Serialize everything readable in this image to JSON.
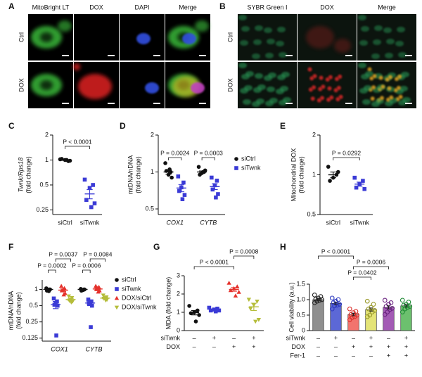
{
  "image_panels": [
    {
      "letter": "A",
      "columns": [
        "MitoBright LT",
        "DOX",
        "DAPI",
        "Merge"
      ],
      "rows": [
        "Ctrl",
        "DOX"
      ]
    },
    {
      "letter": "B",
      "columns": [
        "SYBR Green I",
        "DOX",
        "Merge"
      ],
      "rows": [
        "Ctrl",
        "DOX"
      ]
    }
  ],
  "chart_data": [
    {
      "type": "dot",
      "letter": "C",
      "ylabel": [
        "Twnk/Rps18",
        "(fold change)"
      ],
      "log": true,
      "ylim": [
        0.22,
        2
      ],
      "yticks": [
        0.25,
        0.5,
        1,
        2
      ],
      "categories": [
        "siCtrl",
        "siTwnk"
      ],
      "groups": [
        {
          "color": "#111111",
          "marker": "circle",
          "points": [
            1.02,
            0.97,
            1.0,
            1.03,
            0.98,
            1.0
          ],
          "mean": 1.0,
          "sem": 0.01
        },
        {
          "color": "#3b3bd6",
          "marker": "square",
          "points": [
            0.58,
            0.5,
            0.46,
            0.33,
            0.3,
            0.27
          ],
          "mean": 0.39,
          "sem": 0.05
        }
      ],
      "annotations": [
        "P < 0.0001"
      ]
    },
    {
      "type": "dot",
      "letter": "D",
      "ylabel": [
        "mtDNA/nDNA",
        "(fold change)"
      ],
      "log": true,
      "ylim": [
        0.45,
        2
      ],
      "yticks": [
        0.5,
        1,
        2
      ],
      "categories": [
        "COX1",
        "CYTB"
      ],
      "series": [
        {
          "name": "siCtrl",
          "color": "#111111",
          "marker": "circle",
          "points": [
            [
              1.18,
              1.0,
              0.95,
              1.02,
              0.9,
              1.05
            ],
            [
              1.1,
              1.0,
              0.98,
              0.95,
              1.03,
              1.0
            ]
          ],
          "means": [
            1.0,
            1.0
          ],
          "sems": [
            0.04,
            0.02
          ]
        },
        {
          "name": "siTwnk",
          "color": "#3b3bd6",
          "marker": "square",
          "points": [
            [
              0.92,
              0.82,
              0.75,
              0.7,
              0.65,
              0.6
            ],
            [
              0.9,
              0.85,
              0.78,
              0.72,
              0.66,
              0.62
            ]
          ],
          "means": [
            0.74,
            0.76
          ],
          "sems": [
            0.05,
            0.04
          ]
        }
      ],
      "annotations": [
        "P = 0.0024",
        "P = 0.0003"
      ]
    },
    {
      "type": "dot",
      "letter": "E",
      "ylabel": [
        "Mitochondrial DOX",
        "(fold change)"
      ],
      "log": true,
      "ylim": [
        0.5,
        2
      ],
      "yticks": [
        0.5,
        1,
        2
      ],
      "categories": [
        "siCtrl",
        "siTwnk"
      ],
      "groups": [
        {
          "color": "#111111",
          "marker": "circle",
          "points": [
            1.15,
            1.0,
            0.95,
            0.9,
            1.05
          ],
          "mean": 1.0,
          "sem": 0.05
        },
        {
          "color": "#3b3bd6",
          "marker": "square",
          "points": [
            0.95,
            0.9,
            0.85,
            0.8,
            0.78
          ],
          "mean": 0.85,
          "sem": 0.03
        }
      ],
      "annotations": [
        "P = 0.0292"
      ]
    },
    {
      "type": "dot",
      "letter": "F",
      "ylabel": [
        "mtDNA/nDNA",
        "(fold change)"
      ],
      "log": true,
      "ylim": [
        0.11,
        1.5
      ],
      "yticks": [
        0.125,
        0.25,
        0.5,
        1
      ],
      "categories": [
        "COX1",
        "CYTB"
      ],
      "series": [
        {
          "name": "siCtrl",
          "color": "#111111",
          "marker": "circle",
          "points": [
            [
              1.05,
              1.0,
              0.98,
              0.95,
              1.0,
              0.93
            ],
            [
              1.02,
              1.0,
              0.97,
              0.95,
              1.0,
              0.98
            ]
          ],
          "means": [
            1.0,
            1.0
          ],
          "sems": [
            0.02,
            0.01
          ]
        },
        {
          "name": "siTwnk",
          "color": "#3b3bd6",
          "marker": "square",
          "points": [
            [
              0.68,
              0.6,
              0.55,
              0.52,
              0.5,
              0.14
            ],
            [
              0.65,
              0.6,
              0.58,
              0.55,
              0.5,
              0.2
            ]
          ],
          "means": [
            0.52,
            0.56
          ],
          "sems": [
            0.08,
            0.06
          ]
        },
        {
          "name": "DOX/siCtrl",
          "color": "#e5322c",
          "marker": "triangle",
          "points": [
            [
              1.15,
              1.05,
              1.0,
              0.95,
              0.85,
              0.8
            ],
            [
              1.15,
              1.1,
              1.05,
              1.0,
              0.95,
              0.9
            ]
          ],
          "means": [
            0.97,
            1.02
          ],
          "sems": [
            0.05,
            0.04
          ]
        },
        {
          "name": "DOX/siTwnk",
          "color": "#b5bd3a",
          "marker": "triangle-down",
          "points": [
            [
              0.75,
              0.7,
              0.65,
              0.62,
              0.6,
              0.58
            ],
            [
              0.78,
              0.72,
              0.7,
              0.68,
              0.65,
              0.63
            ]
          ],
          "means": [
            0.65,
            0.69
          ],
          "sems": [
            0.03,
            0.02
          ]
        }
      ],
      "annotations": [
        "P = 0.0037",
        "P = 0.0084",
        "P = 0.0002",
        "P = 0.0006"
      ]
    },
    {
      "type": "dot",
      "letter": "G",
      "ylabel": [
        "MDA (fold change)"
      ],
      "log": false,
      "ylim": [
        0,
        3
      ],
      "yticks": [
        0,
        1,
        2,
        3
      ],
      "groups": [
        {
          "color": "#111111",
          "marker": "circle",
          "points": [
            1.35,
            1.1,
            1.0,
            0.95,
            0.85,
            0.5
          ],
          "mean": 0.98,
          "sem": 0.12
        },
        {
          "color": "#3b3bd6",
          "marker": "square",
          "points": [
            1.25,
            1.2,
            1.15,
            1.1,
            1.1,
            1.05
          ],
          "mean": 1.14,
          "sem": 0.03
        },
        {
          "color": "#e5322c",
          "marker": "triangle",
          "points": [
            2.6,
            2.4,
            2.3,
            2.2,
            2.1,
            1.9
          ],
          "mean": 2.25,
          "sem": 0.1
        },
        {
          "color": "#b5bd3a",
          "marker": "triangle-down",
          "points": [
            1.7,
            1.6,
            1.4,
            1.2,
            0.6,
            0.5
          ],
          "mean": 1.3,
          "sem": 0.2
        }
      ],
      "factors": [
        {
          "label": "siTwnk",
          "values": [
            "–",
            "+",
            "–",
            "+"
          ]
        },
        {
          "label": "DOX",
          "values": [
            "–",
            "–",
            "+",
            "+"
          ]
        }
      ],
      "annotations": [
        "P = 0.0008",
        "P < 0.0001"
      ]
    },
    {
      "type": "bar",
      "letter": "H",
      "ylabel": [
        "Cell viability (a.u.)"
      ],
      "log": false,
      "ylim": [
        0,
        1.5
      ],
      "yticks": [
        0,
        0.5,
        {
          "value": 1,
          "label": "1.0"
        },
        1.5
      ],
      "groups": [
        {
          "color": "#222222",
          "fill": "#8f8f8f",
          "marker": "open-circle",
          "points": [
            1.15,
            1.1,
            1.05,
            1.02,
            1.0,
            0.98,
            0.95,
            0.9
          ],
          "mean": 1.0,
          "sem": 0.03
        },
        {
          "color": "#2f3bc0",
          "fill": "#5c68d6",
          "marker": "open-circle",
          "points": [
            1.05,
            1.0,
            0.95,
            0.9,
            0.85,
            0.82,
            0.8,
            0.7
          ],
          "mean": 0.88,
          "sem": 0.04
        },
        {
          "color": "#d9302a",
          "fill": "#f2746e",
          "marker": "open-circle",
          "points": [
            0.7,
            0.62,
            0.58,
            0.52,
            0.5,
            0.45,
            0.42,
            0.35
          ],
          "mean": 0.52,
          "sem": 0.04
        },
        {
          "color": "#9a9a2a",
          "fill": "#e4e477",
          "marker": "open-circle",
          "points": [
            0.95,
            0.85,
            0.75,
            0.7,
            0.65,
            0.6,
            0.5,
            0.45
          ],
          "mean": 0.68,
          "sem": 0.05
        },
        {
          "color": "#6a2480",
          "fill": "#a35bb5",
          "marker": "open-circle",
          "points": [
            0.98,
            0.9,
            0.85,
            0.78,
            0.72,
            0.68,
            0.6,
            0.52
          ],
          "mean": 0.75,
          "sem": 0.05
        },
        {
          "color": "#1f8a35",
          "fill": "#6cc06e",
          "marker": "open-circle",
          "points": [
            0.98,
            0.92,
            0.85,
            0.82,
            0.78,
            0.75,
            0.7,
            0.6
          ],
          "mean": 0.8,
          "sem": 0.04
        }
      ],
      "factors": [
        {
          "label": "siTwnk",
          "values": [
            "–",
            "+",
            "–",
            "+",
            "–",
            "+"
          ]
        },
        {
          "label": "DOX",
          "values": [
            "–",
            "–",
            "+",
            "+",
            "+",
            "+"
          ]
        },
        {
          "label": "Fer-1",
          "values": [
            "–",
            "–",
            "–",
            "–",
            "+",
            "+"
          ]
        }
      ],
      "annotations": [
        "P < 0.0001",
        "P = 0.0006",
        "P = 0.0402"
      ]
    }
  ]
}
